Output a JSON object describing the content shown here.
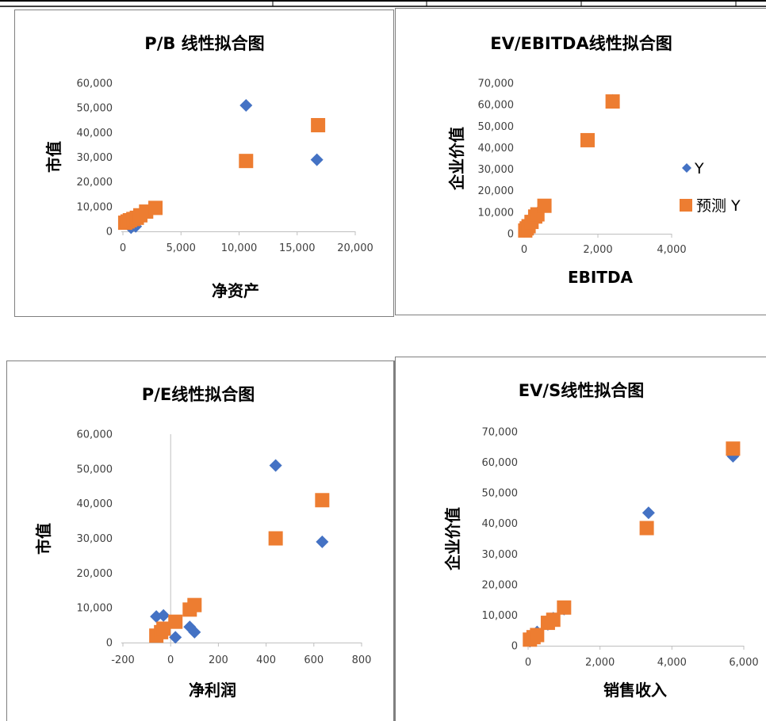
{
  "legend": {
    "y_label": "Y",
    "pred_label": "预测 Y",
    "y_color": "#4472C4",
    "pred_color": "#ED7D31"
  },
  "chart_data": [
    {
      "type": "scatter",
      "title": "P/B 线性拟合图",
      "xlabel": "净资产",
      "ylabel": "市值",
      "xlim": [
        0,
        20000
      ],
      "ylim": [
        0,
        60000
      ],
      "x_ticks": [
        "0",
        "5,000",
        "10,000",
        "15,000",
        "20,000"
      ],
      "y_ticks": [
        "0",
        "10,000",
        "20,000",
        "30,000",
        "40,000",
        "50,000",
        "60,000"
      ],
      "series": [
        {
          "name": "Y",
          "marker": "diamond",
          "color": "#4472C4",
          "points": [
            [
              300,
              3500
            ],
            [
              500,
              2500
            ],
            [
              700,
              1500
            ],
            [
              900,
              3000
            ],
            [
              1100,
              2000
            ],
            [
              1400,
              5000
            ],
            [
              1900,
              7000
            ],
            [
              2500,
              9000
            ],
            [
              10600,
              51000
            ],
            [
              16700,
              29000
            ]
          ]
        },
        {
          "name": "预测 Y",
          "marker": "square",
          "color": "#ED7D31",
          "points": [
            [
              200,
              3500
            ],
            [
              400,
              4000
            ],
            [
              600,
              4500
            ],
            [
              900,
              5000
            ],
            [
              1200,
              5500
            ],
            [
              1500,
              6500
            ],
            [
              2000,
              8000
            ],
            [
              2800,
              9500
            ],
            [
              10600,
              28500
            ],
            [
              16800,
              43000
            ]
          ]
        }
      ]
    },
    {
      "type": "scatter",
      "title": "EV/EBITDA线性拟合图",
      "xlabel": "EBITDA",
      "ylabel": "企业价值",
      "xlim": [
        0,
        4000
      ],
      "ylim": [
        0,
        70000
      ],
      "x_ticks": [
        "0",
        "2,000",
        "4,000"
      ],
      "y_ticks": [
        "0",
        "10,000",
        "20,000",
        "30,000",
        "40,000",
        "50,000",
        "60,000",
        "70,000"
      ],
      "legend_position": "right",
      "series": [
        {
          "name": "Y",
          "marker": "diamond",
          "color": "#4472C4",
          "points": [
            [
              40,
              1500
            ],
            [
              80,
              2500
            ],
            [
              130,
              3500
            ],
            [
              200,
              5000
            ],
            [
              300,
              8000
            ],
            [
              380,
              10000
            ],
            [
              2400,
              62000
            ]
          ]
        },
        {
          "name": "预测 Y",
          "marker": "square",
          "color": "#ED7D31",
          "points": [
            [
              30,
              1500
            ],
            [
              70,
              2500
            ],
            [
              120,
              3500
            ],
            [
              200,
              5500
            ],
            [
              300,
              8000
            ],
            [
              360,
              9000
            ],
            [
              550,
              13000
            ],
            [
              1720,
              43500
            ],
            [
              2400,
              61500
            ]
          ]
        }
      ]
    },
    {
      "type": "scatter",
      "title": "P/E线性拟合图",
      "xlabel": "净利润",
      "ylabel": "市值",
      "xlim": [
        -200,
        800
      ],
      "ylim": [
        0,
        60000
      ],
      "x_ticks": [
        "-200",
        "0",
        "200",
        "400",
        "600",
        "800"
      ],
      "y_ticks": [
        "0",
        "10,000",
        "20,000",
        "30,000",
        "40,000",
        "50,000",
        "60,000"
      ],
      "series": [
        {
          "name": "Y",
          "marker": "diamond",
          "color": "#4472C4",
          "points": [
            [
              -60,
              7500
            ],
            [
              -30,
              7800
            ],
            [
              -40,
              3000
            ],
            [
              20,
              1500
            ],
            [
              80,
              4500
            ],
            [
              100,
              3000
            ],
            [
              440,
              51000
            ],
            [
              635,
              29000
            ]
          ]
        },
        {
          "name": "预测 Y",
          "marker": "square",
          "color": "#ED7D31",
          "points": [
            [
              -60,
              2000
            ],
            [
              -40,
              3000
            ],
            [
              -30,
              4000
            ],
            [
              20,
              6000
            ],
            [
              80,
              9500
            ],
            [
              100,
              10800
            ],
            [
              440,
              30000
            ],
            [
              635,
              41000
            ]
          ]
        }
      ]
    },
    {
      "type": "scatter",
      "title": "EV/S线性拟合图",
      "xlabel": "销售收入",
      "ylabel": "企业价值",
      "xlim": [
        0,
        6000
      ],
      "ylim": [
        0,
        70000
      ],
      "x_ticks": [
        "0",
        "2,000",
        "4,000",
        "6,000"
      ],
      "y_ticks": [
        "0",
        "10,000",
        "20,000",
        "30,000",
        "40,000",
        "50,000",
        "60,000",
        "70,000"
      ],
      "series": [
        {
          "name": "Y",
          "marker": "diamond",
          "color": "#4472C4",
          "points": [
            [
              50,
              1500
            ],
            [
              150,
              3000
            ],
            [
              250,
              4500
            ],
            [
              550,
              7000
            ],
            [
              700,
              9000
            ],
            [
              1000,
              12000
            ],
            [
              3350,
              43500
            ],
            [
              5700,
              62000
            ]
          ]
        },
        {
          "name": "预测 Y",
          "marker": "square",
          "color": "#ED7D31",
          "points": [
            [
              50,
              2000
            ],
            [
              150,
              2800
            ],
            [
              250,
              3500
            ],
            [
              550,
              7500
            ],
            [
              700,
              8500
            ],
            [
              1000,
              12500
            ],
            [
              3300,
              38500
            ],
            [
              5700,
              64500
            ]
          ]
        }
      ]
    }
  ]
}
